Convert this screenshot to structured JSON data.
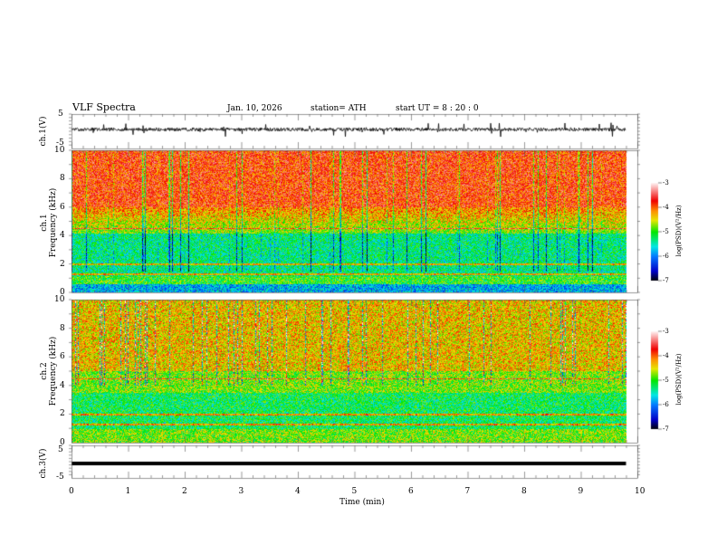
{
  "header": {
    "title": "VLF  Spectra",
    "date": "Jan. 10, 2026",
    "station": "station= ATH",
    "start": "start  UT  =   8  : 20 : 0"
  },
  "chart_data": [
    {
      "type": "line",
      "name": "ch1 waveform",
      "ylabel": "ch.1(V)",
      "ylim": [
        -5,
        5
      ],
      "yticks": [
        "5",
        "-5"
      ],
      "xlim": [
        0,
        10
      ],
      "data_end_min": 9.8,
      "mean": 0,
      "description_values": {
        "baseline_v": 0
      }
    },
    {
      "type": "heatmap",
      "name": "ch1 spectrogram",
      "ylabel": "ch.1\nFrequency  (kHz)",
      "ylabel_lines": [
        "ch.1",
        "Frequency  (kHz)"
      ],
      "ylim": [
        0,
        10
      ],
      "yticks": [
        "0",
        "2",
        "4",
        "6",
        "8",
        "10"
      ],
      "colorbar": {
        "label": "log(PSD)(V²/Hz)",
        "range": [
          -7,
          -3
        ],
        "ticks": [
          "-3",
          "-4",
          "-5",
          "-6",
          "-7"
        ]
      }
    },
    {
      "type": "heatmap",
      "name": "ch2 spectrogram",
      "ylabel_lines": [
        "ch.2",
        "Frequency  (kHz)"
      ],
      "ylim": [
        0,
        10
      ],
      "yticks": [
        "0",
        "2",
        "4",
        "6",
        "8",
        "10"
      ],
      "colorbar": {
        "label": "log(PSD)(V²/Hz)",
        "range": [
          -7,
          -3
        ],
        "ticks": [
          "-3",
          "-4",
          "-5",
          "-6",
          "-7"
        ]
      }
    },
    {
      "type": "line",
      "name": "ch3 waveform",
      "ylabel": "ch.3(V)",
      "ylim": [
        -5,
        5
      ],
      "yticks": [
        "5",
        "-5"
      ],
      "constant_value": 0
    }
  ],
  "xaxis": {
    "label": "Time  (min)",
    "ticks": [
      "0",
      "1",
      "2",
      "3",
      "4",
      "5",
      "6",
      "7",
      "8",
      "9",
      "10"
    ],
    "range": [
      0,
      10
    ]
  }
}
